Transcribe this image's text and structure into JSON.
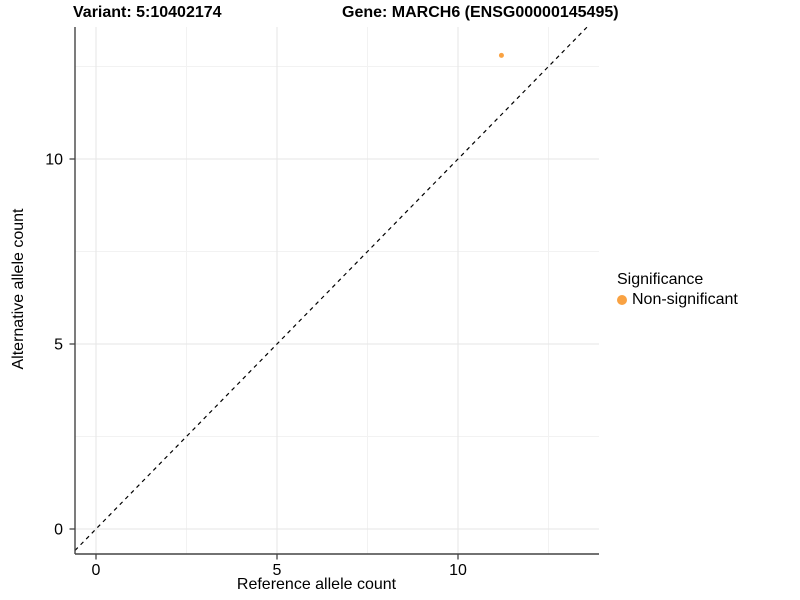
{
  "chart_data": {
    "type": "scatter",
    "titles": {
      "left": "Variant: 5:10402174",
      "right": "Gene: MARCH6 (ENSG00000145495)"
    },
    "xlabel": "Reference allele count",
    "ylabel": "Alternative allele count",
    "x_ticks": [
      0,
      5,
      10
    ],
    "x_minor_ticks": [
      2.5,
      7.5,
      12.5
    ],
    "y_ticks": [
      0,
      5,
      10
    ],
    "y_minor_ticks": [
      2.5,
      7.5,
      12.5
    ],
    "xlim": [
      -0.6,
      13.9
    ],
    "ylim": [
      -0.65,
      13.6
    ],
    "grid": "major and minor, light gray, white background",
    "reference_line": {
      "style": "dashed",
      "slope": 1,
      "intercept": 0,
      "color": "#000000"
    },
    "series": [
      {
        "name": "Non-significant",
        "color": "#F9A242",
        "point_size": 2.5,
        "points": [
          [
            11.2,
            12.8
          ]
        ]
      }
    ],
    "legend": {
      "title": "Significance",
      "position": "right",
      "entries": [
        {
          "label": "Non-significant",
          "color": "#F9A242"
        }
      ]
    }
  },
  "colors": {
    "axis": "#444444",
    "tick": "#444444",
    "grid_major": "#E6E6E6",
    "grid_minor": "#F2F2F2",
    "text": "#000000",
    "background": "#FFFFFF"
  }
}
